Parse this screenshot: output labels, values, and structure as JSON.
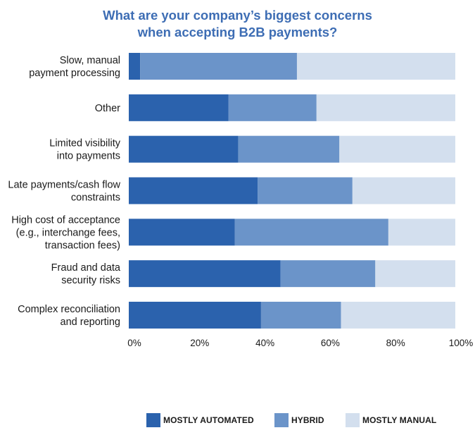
{
  "chart_data": {
    "type": "bar",
    "orientation": "horizontal",
    "stacked": true,
    "title_lines": [
      "What are your company’s biggest concerns",
      "when accepting B2B payments?"
    ],
    "categories": [
      {
        "name": "slow-manual",
        "lines": [
          "Slow, manual",
          "payment processing"
        ]
      },
      {
        "name": "other",
        "lines": [
          "Other"
        ]
      },
      {
        "name": "limited-visibility",
        "lines": [
          "Limited visibility",
          "into payments"
        ]
      },
      {
        "name": "late-payments",
        "lines": [
          "Late payments/cash flow",
          "constraints"
        ]
      },
      {
        "name": "high-cost",
        "lines": [
          "High cost of acceptance",
          "(e.g., interchange fees,",
          "transaction fees)"
        ]
      },
      {
        "name": "fraud",
        "lines": [
          "Fraud and data",
          "security risks"
        ]
      },
      {
        "name": "reconciliation",
        "lines": [
          "Complex reconciliation",
          "and reporting"
        ]
      }
    ],
    "series": [
      {
        "name": "MOSTLY AUTOMATED",
        "color": "#2b62ad",
        "values": [
          3.5,
          30.5,
          33.5,
          39.5,
          32.5,
          46.5,
          40.5
        ]
      },
      {
        "name": "HYBRID",
        "color": "#6b94c9",
        "values": [
          48,
          27,
          31,
          29,
          47,
          29,
          24.5
        ]
      },
      {
        "name": "MOSTLY MANUAL",
        "color": "#d3dfee",
        "values": [
          48.5,
          42.5,
          35.5,
          31.5,
          20.5,
          24.5,
          35
        ]
      }
    ],
    "x_ticks": [
      "0%",
      "20%",
      "40%",
      "60%",
      "80%",
      "100%"
    ],
    "xlim": [
      0,
      100
    ],
    "legend_position": "bottom"
  }
}
